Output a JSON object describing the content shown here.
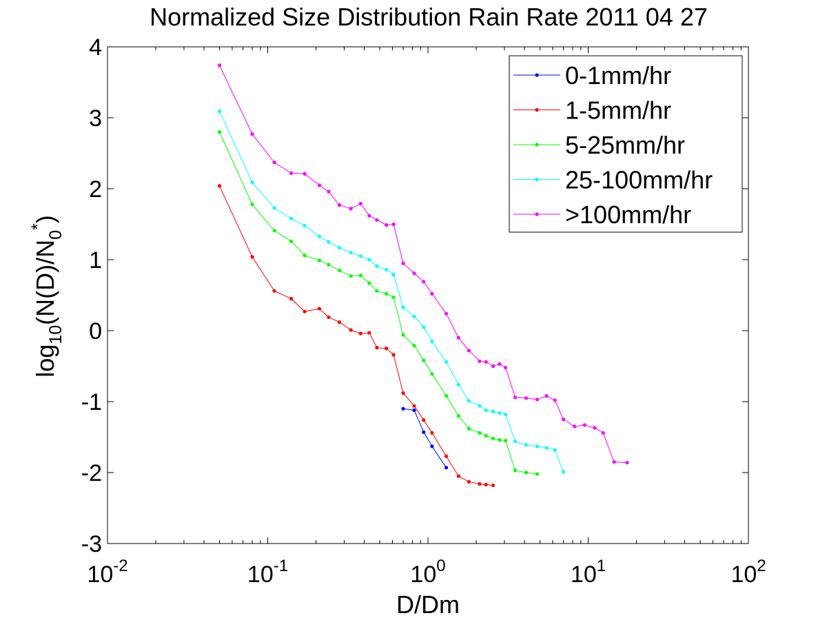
{
  "chart_data": {
    "type": "line",
    "title": "Normalized Size Distribution Rain Rate 2011 04 27",
    "xlabel": "D/Dm",
    "ylabel": {
      "base": "log",
      "base_sub": "10",
      "open": "(N(D)/N",
      "n_sub": "0",
      "star": "*",
      "close": ")"
    },
    "x_scale": "log",
    "xlim": [
      0.01,
      100
    ],
    "ylim": [
      -3,
      4
    ],
    "x_ticks": [
      {
        "value": 0.01,
        "base": "10",
        "exp": "-2"
      },
      {
        "value": 0.1,
        "base": "10",
        "exp": "-1"
      },
      {
        "value": 1,
        "base": "10",
        "exp": "0"
      },
      {
        "value": 10,
        "base": "10",
        "exp": "1"
      },
      {
        "value": 100,
        "base": "10",
        "exp": "2"
      }
    ],
    "y_ticks": [
      {
        "value": 4,
        "label": "4"
      },
      {
        "value": 3,
        "label": "3"
      },
      {
        "value": 2,
        "label": "2"
      },
      {
        "value": 1,
        "label": "1"
      },
      {
        "value": 0,
        "label": "0"
      },
      {
        "value": -1,
        "label": "-1"
      },
      {
        "value": -2,
        "label": "-2"
      },
      {
        "value": -3,
        "label": "-3"
      }
    ],
    "grid": false,
    "legend_position": "top-right",
    "series": [
      {
        "name": "0-1mm/hr",
        "color": "#0000ff",
        "x": [
          0.7,
          0.82,
          0.94,
          1.06,
          1.3
        ],
        "y": [
          -1.1,
          -1.12,
          -1.43,
          -1.63,
          -1.93
        ]
      },
      {
        "name": "1-5mm/hr",
        "color": "#ff0000",
        "x": [
          0.05,
          0.08,
          0.11,
          0.14,
          0.17,
          0.21,
          0.24,
          0.28,
          0.33,
          0.38,
          0.43,
          0.48,
          0.55,
          0.61,
          0.7,
          0.82,
          0.94,
          1.06,
          1.3,
          1.55,
          1.8,
          2.1,
          2.3,
          2.55
        ],
        "y": [
          2.04,
          1.04,
          0.56,
          0.45,
          0.27,
          0.31,
          0.19,
          0.12,
          0.01,
          -0.04,
          -0.03,
          -0.24,
          -0.25,
          -0.34,
          -0.88,
          -1.06,
          -1.26,
          -1.44,
          -1.77,
          -2.05,
          -2.13,
          -2.16,
          -2.17,
          -2.18
        ]
      },
      {
        "name": "5-25mm/hr",
        "color": "#00ff00",
        "x": [
          0.05,
          0.08,
          0.11,
          0.14,
          0.17,
          0.21,
          0.24,
          0.28,
          0.33,
          0.38,
          0.43,
          0.48,
          0.55,
          0.61,
          0.7,
          0.82,
          0.94,
          1.06,
          1.3,
          1.55,
          1.8,
          2.1,
          2.3,
          2.55,
          2.8,
          3.05,
          3.5,
          4.1,
          4.8
        ],
        "y": [
          2.8,
          1.78,
          1.41,
          1.26,
          1.06,
          0.99,
          0.93,
          0.85,
          0.77,
          0.78,
          0.67,
          0.56,
          0.52,
          0.47,
          -0.06,
          -0.21,
          -0.42,
          -0.61,
          -0.92,
          -1.2,
          -1.38,
          -1.44,
          -1.48,
          -1.52,
          -1.54,
          -1.55,
          -1.97,
          -2.0,
          -2.02
        ]
      },
      {
        "name": "25-100mm/hr",
        "color": "#00ffff",
        "x": [
          0.05,
          0.08,
          0.11,
          0.14,
          0.17,
          0.21,
          0.24,
          0.28,
          0.33,
          0.38,
          0.43,
          0.48,
          0.55,
          0.61,
          0.7,
          0.82,
          0.94,
          1.06,
          1.3,
          1.55,
          1.8,
          2.1,
          2.3,
          2.55,
          2.8,
          3.05,
          3.5,
          4.1,
          4.8,
          5.5,
          6.2,
          7.0
        ],
        "y": [
          3.09,
          2.09,
          1.73,
          1.58,
          1.48,
          1.33,
          1.25,
          1.17,
          1.1,
          1.05,
          1.0,
          0.91,
          0.86,
          0.79,
          0.33,
          0.2,
          0.05,
          -0.15,
          -0.44,
          -0.76,
          -0.99,
          -1.06,
          -1.12,
          -1.14,
          -1.16,
          -1.18,
          -1.56,
          -1.61,
          -1.63,
          -1.65,
          -1.68,
          -1.99
        ]
      },
      {
        "name": ">100mm/hr",
        "color": "#ff00ff",
        "x": [
          0.05,
          0.08,
          0.11,
          0.14,
          0.17,
          0.21,
          0.24,
          0.28,
          0.33,
          0.38,
          0.43,
          0.48,
          0.55,
          0.61,
          0.7,
          0.82,
          0.94,
          1.06,
          1.3,
          1.55,
          1.8,
          2.1,
          2.3,
          2.55,
          2.8,
          3.05,
          3.5,
          4.1,
          4.8,
          5.5,
          6.2,
          7.0,
          8.2,
          9.5,
          11.0,
          12.4,
          14.5,
          17.5
        ],
        "y": [
          3.74,
          2.77,
          2.37,
          2.22,
          2.21,
          2.05,
          1.96,
          1.77,
          1.72,
          1.79,
          1.62,
          1.56,
          1.49,
          1.5,
          0.95,
          0.81,
          0.69,
          0.52,
          0.24,
          -0.1,
          -0.28,
          -0.43,
          -0.44,
          -0.5,
          -0.47,
          -0.52,
          -0.94,
          -0.95,
          -0.97,
          -0.92,
          -0.98,
          -1.25,
          -1.35,
          -1.33,
          -1.37,
          -1.44,
          -1.85,
          -1.86
        ]
      }
    ]
  }
}
